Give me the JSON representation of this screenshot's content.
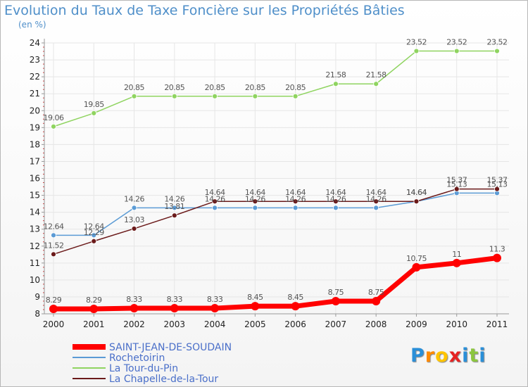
{
  "title": "Evolution du Taux de Taxe Foncière sur les Propriétés Bâties",
  "unit_label": "(en %)",
  "logo": {
    "letters": [
      "P",
      "r",
      "o",
      "x",
      "i",
      "t",
      "i"
    ],
    "colors": [
      "#2a8fd8",
      "#ff8a00",
      "#ffc400",
      "#e62222",
      "#2a8fd8",
      "#8cc63f",
      "#2a8fd8"
    ]
  },
  "chart_data": {
    "type": "line",
    "title": "Evolution du Taux de Taxe Foncière sur les Propriétés Bâties",
    "ylabel": "(en %)",
    "xlabel": "",
    "ylim": [
      8,
      24
    ],
    "yticks": [
      "8",
      "9",
      "10",
      "11",
      "12",
      "13",
      "14",
      "15",
      "16",
      "17",
      "18",
      "19",
      "20",
      "21",
      "22",
      "23",
      "24"
    ],
    "x": [
      "2000",
      "2001",
      "2002",
      "2003",
      "2004",
      "2005",
      "2006",
      "2007",
      "2008",
      "2009",
      "2010",
      "2011"
    ],
    "grid": true,
    "series": [
      {
        "name": "SAINT-JEAN-DE-SOUDAIN",
        "color": "#ff0000",
        "values": [
          8.29,
          8.29,
          8.33,
          8.33,
          8.33,
          8.45,
          8.45,
          8.75,
          8.75,
          10.75,
          11,
          11.3
        ],
        "labels": [
          "8.29",
          "8.29",
          "8.33",
          "8.33",
          "8.33",
          "8.45",
          "8.45",
          "8.75",
          "8.75",
          "10.75",
          "11",
          "11.3"
        ]
      },
      {
        "name": "Rochetoirin",
        "color": "#5b9bd5",
        "values": [
          12.64,
          12.64,
          14.26,
          14.26,
          14.26,
          14.26,
          14.26,
          14.26,
          14.26,
          14.64,
          15.13,
          15.13
        ],
        "labels": [
          "12.64",
          "12.64",
          "14.26",
          "14.26",
          "14.26",
          "14.26",
          "14.26",
          "14.26",
          "14.26",
          "14.64",
          "15.13",
          "15.13"
        ]
      },
      {
        "name": "La Tour-du-Pin",
        "color": "#8fd460",
        "values": [
          19.06,
          19.85,
          20.85,
          20.85,
          20.85,
          20.85,
          20.85,
          21.58,
          21.58,
          23.52,
          23.52,
          23.52
        ],
        "labels": [
          "19.06",
          "19.85",
          "20.85",
          "20.85",
          "20.85",
          "20.85",
          "20.85",
          "21.58",
          "21.58",
          "23.52",
          "23.52",
          "23.52"
        ]
      },
      {
        "name": "La Chapelle-de-la-Tour",
        "color": "#6b1a1a",
        "values": [
          11.52,
          12.29,
          13.03,
          13.81,
          14.64,
          14.64,
          14.64,
          14.64,
          14.64,
          14.64,
          15.37,
          15.37
        ],
        "labels": [
          "11.52",
          "12.29",
          "13.03",
          "13.81",
          "14.64",
          "14.64",
          "14.64",
          "14.64",
          "14.64",
          "14.64",
          "15.37",
          "15.37"
        ]
      }
    ],
    "legend": "bottom-left"
  }
}
